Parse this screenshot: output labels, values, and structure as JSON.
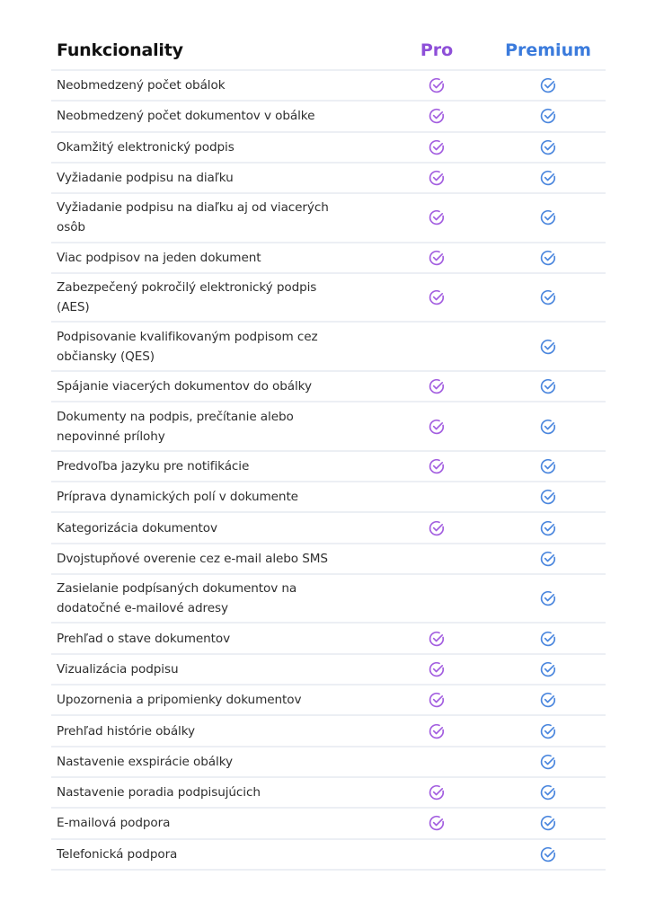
{
  "header": {
    "feature_label": "Funkcionality",
    "plans": [
      {
        "name": "Pro",
        "color": "#8e4fd8"
      },
      {
        "name": "Premium",
        "color": "#3b7bdc"
      }
    ]
  },
  "icons": {
    "check": "check-circle-icon",
    "pro_check_color": "#a35ee0",
    "premium_check_color": "#4a86de"
  },
  "rows": [
    {
      "feature": "Neobmedzený počet obálok",
      "pro": true,
      "premium": true,
      "lines": 1
    },
    {
      "feature": "Neobmedzený počet dokumentov v obálke",
      "pro": true,
      "premium": true,
      "lines": 1
    },
    {
      "feature": "Okamžitý elektronický podpis",
      "pro": true,
      "premium": true,
      "lines": 1
    },
    {
      "feature": "Vyžiadanie podpisu na diaľku",
      "pro": true,
      "premium": true,
      "lines": 1
    },
    {
      "feature": "Vyžiadanie podpisu na diaľku aj od viacerých osôb",
      "pro": true,
      "premium": true,
      "lines": 2
    },
    {
      "feature": "Viac podpisov na jeden dokument",
      "pro": true,
      "premium": true,
      "lines": 1
    },
    {
      "feature": "Zabezpečený pokročilý elektronický podpis (AES)",
      "pro": true,
      "premium": true,
      "lines": 2
    },
    {
      "feature": "Podpisovanie kvalifikovaným podpisom cez občiansky (QES)",
      "pro": false,
      "premium": true,
      "lines": 2
    },
    {
      "feature": "Spájanie viacerých dokumentov do obálky",
      "pro": true,
      "premium": true,
      "lines": 1
    },
    {
      "feature": "Dokumenty na podpis, prečítanie alebo nepovinné prílohy",
      "pro": true,
      "premium": true,
      "lines": 2
    },
    {
      "feature": "Predvoľba jazyku pre notifikácie",
      "pro": true,
      "premium": true,
      "lines": 1
    },
    {
      "feature": "Príprava dynamických polí v dokumente",
      "pro": false,
      "premium": true,
      "lines": 1
    },
    {
      "feature": "Kategorizácia dokumentov",
      "pro": true,
      "premium": true,
      "lines": 1
    },
    {
      "feature": "Dvojstupňové overenie cez e-mail alebo SMS",
      "pro": false,
      "premium": true,
      "lines": 1
    },
    {
      "feature": "Zasielanie podpísaných dokumentov na dodatočné e-mailové adresy",
      "pro": false,
      "premium": true,
      "lines": 2
    },
    {
      "feature": "Prehľad o stave dokumentov",
      "pro": true,
      "premium": true,
      "lines": 1
    },
    {
      "feature": "Vizualizácia podpisu",
      "pro": true,
      "premium": true,
      "lines": 1
    },
    {
      "feature": "Upozornenia a pripomienky dokumentov",
      "pro": true,
      "premium": true,
      "lines": 1
    },
    {
      "feature": "Prehľad histórie obálky",
      "pro": true,
      "premium": true,
      "lines": 1
    },
    {
      "feature": "Nastavenie exspirácie obálky",
      "pro": false,
      "premium": true,
      "lines": 1
    },
    {
      "feature": "Nastavenie poradia podpisujúcich",
      "pro": true,
      "premium": true,
      "lines": 1
    },
    {
      "feature": "E-mailová podpora",
      "pro": true,
      "premium": true,
      "lines": 1
    },
    {
      "feature": "Telefonická podpora",
      "pro": false,
      "premium": true,
      "lines": 1
    }
  ]
}
